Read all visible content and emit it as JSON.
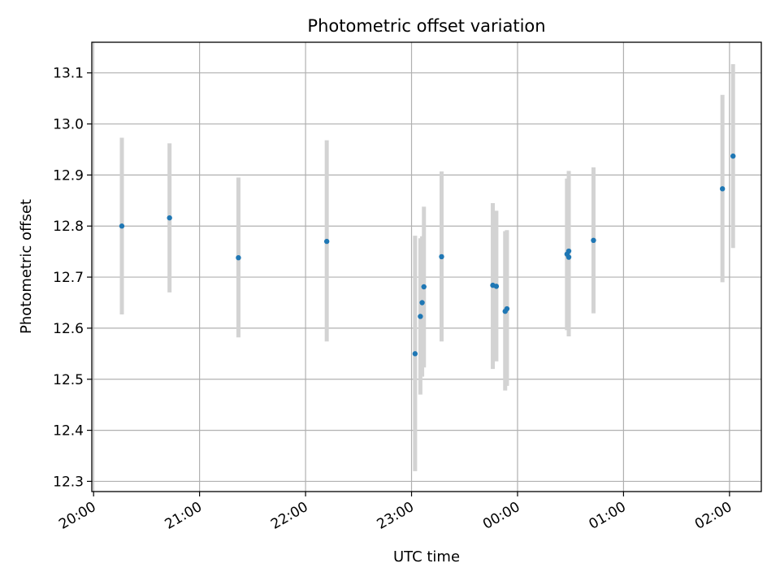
{
  "chart_data": {
    "type": "scatter",
    "title": "Photometric offset variation",
    "xlabel": "UTC time",
    "ylabel": "Photometric offset",
    "x_unit": "UTC time (HH:MM); times after 00:00 fall on the following day",
    "xlim": [
      "19:59",
      "02:18"
    ],
    "ylim": [
      12.28,
      13.16
    ],
    "x_ticks": [
      "20:00",
      "21:00",
      "22:00",
      "23:00",
      "00:00",
      "01:00",
      "02:00"
    ],
    "y_ticks": [
      "12.3",
      "12.4",
      "12.5",
      "12.6",
      "12.7",
      "12.8",
      "12.9",
      "13.0",
      "13.1"
    ],
    "grid": true,
    "legend": "none",
    "colors": {
      "points": "#1f77b4",
      "error_bars": "#d3d3d3",
      "grid": "#b0b0b0"
    },
    "series": [
      {
        "points": [
          {
            "x": "20:16",
            "y": 12.8,
            "ylow": 12.627,
            "yhigh": 12.973
          },
          {
            "x": "20:43",
            "y": 12.816,
            "ylow": 12.67,
            "yhigh": 12.962
          },
          {
            "x": "21:22",
            "y": 12.738,
            "ylow": 12.582,
            "yhigh": 12.895
          },
          {
            "x": "22:12",
            "y": 12.77,
            "ylow": 12.574,
            "yhigh": 12.968
          },
          {
            "x": "23:02",
            "y": 12.55,
            "ylow": 12.32,
            "yhigh": 12.781
          },
          {
            "x": "23:05",
            "y": 12.623,
            "ylow": 12.47,
            "yhigh": 12.776
          },
          {
            "x": "23:06",
            "y": 12.65,
            "ylow": 12.505,
            "yhigh": 12.78
          },
          {
            "x": "23:07",
            "y": 12.681,
            "ylow": 12.523,
            "yhigh": 12.838
          },
          {
            "x": "23:17",
            "y": 12.74,
            "ylow": 12.574,
            "yhigh": 12.907
          },
          {
            "x": "23:46",
            "y": 12.684,
            "ylow": 12.52,
            "yhigh": 12.845
          },
          {
            "x": "23:48",
            "y": 12.682,
            "ylow": 12.535,
            "yhigh": 12.83
          },
          {
            "x": "23:53",
            "y": 12.633,
            "ylow": 12.478,
            "yhigh": 12.79
          },
          {
            "x": "23:54",
            "y": 12.638,
            "ylow": 12.487,
            "yhigh": 12.792
          },
          {
            "x": "00:28",
            "y": 12.745,
            "ylow": 12.596,
            "yhigh": 12.893
          },
          {
            "x": "00:29",
            "y": 12.751,
            "ylow": 12.584,
            "yhigh": 12.908
          },
          {
            "x": "00:29",
            "y": 12.739,
            "ylow": 12.586,
            "yhigh": 12.893
          },
          {
            "x": "00:43",
            "y": 12.772,
            "ylow": 12.629,
            "yhigh": 12.915
          },
          {
            "x": "01:56",
            "y": 12.873,
            "ylow": 12.69,
            "yhigh": 13.057
          },
          {
            "x": "02:02",
            "y": 12.937,
            "ylow": 12.757,
            "yhigh": 13.117
          }
        ]
      }
    ]
  }
}
